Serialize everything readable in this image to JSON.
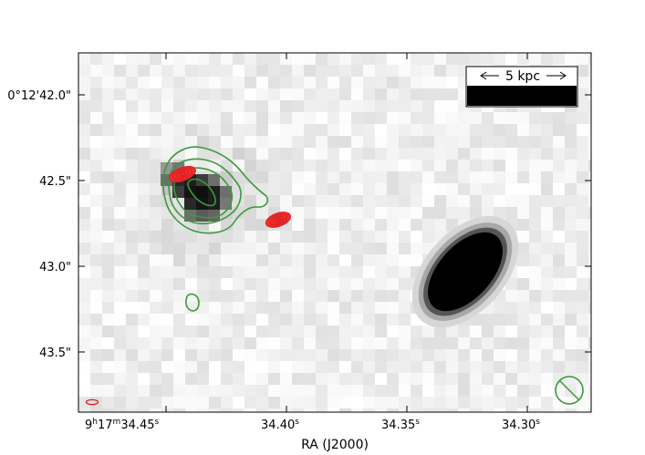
{
  "figure": {
    "xlabel": "RA (J2000)",
    "x_ticks": [
      {
        "h": "9",
        "m": "17",
        "s": "34.45"
      },
      {
        "s": "34.40"
      },
      {
        "s": "34.35"
      },
      {
        "s": "34.30"
      }
    ],
    "y_ticks": [
      "0°12'42.0\"",
      "42.5\"",
      "43.0\"",
      "43.5\""
    ],
    "scalebar": {
      "label": "5 kpc"
    },
    "colors": {
      "contour_green": "#3a9a3a",
      "contour_red": "#e02020",
      "frame": "#000000"
    },
    "background": "greyscale pixelated image"
  },
  "chart_data": {
    "type": "image",
    "xlabel": "RA (J2000)",
    "ylabel": "",
    "x_tick_labels": [
      "9h17m34.45s",
      "34.40s",
      "34.35s",
      "34.30s"
    ],
    "x_ticks_s": [
      34.45,
      34.4,
      34.35,
      34.3
    ],
    "y_tick_labels": [
      "0°12'42.0\"",
      "42.5\"",
      "43.0\"",
      "43.5\""
    ],
    "y_ticks_arcsec": [
      42.0,
      42.5,
      43.0,
      43.5
    ],
    "scalebar": "5 kpc",
    "layers": [
      {
        "kind": "greyscale image"
      },
      {
        "kind": "contours",
        "color": "green"
      },
      {
        "kind": "contours",
        "color": "red"
      }
    ],
    "beams": [
      {
        "color": "red",
        "position": "bottom-left"
      },
      {
        "color": "green",
        "position": "bottom-right"
      }
    ]
  }
}
